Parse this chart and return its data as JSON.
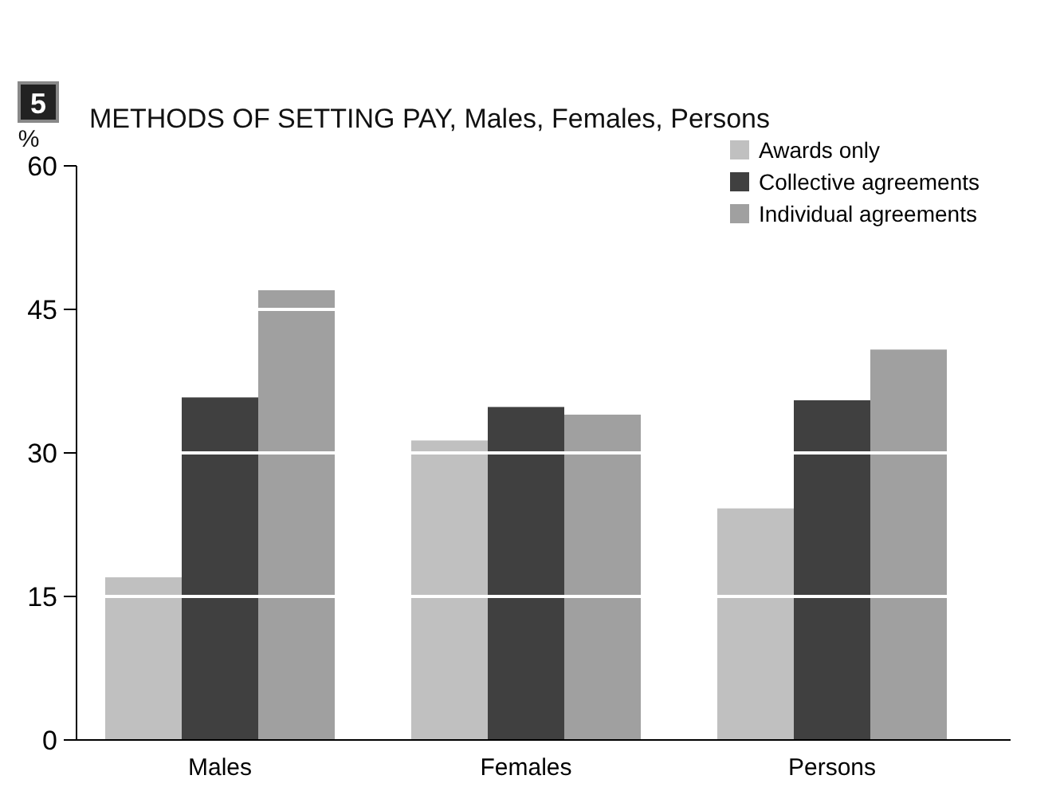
{
  "chart_data": {
    "type": "bar",
    "title": "METHODS OF SETTING PAY, Males, Females, Persons",
    "ylabel": "%",
    "annotations": [
      "5"
    ],
    "categories": [
      "Males",
      "Females",
      "Persons"
    ],
    "series": [
      {
        "name": "Awards only",
        "color": "#c0c0c0",
        "values": [
          17,
          31.3,
          24.2
        ]
      },
      {
        "name": "Collective agreements",
        "color": "#404040",
        "values": [
          35.8,
          34.8,
          35.5
        ]
      },
      {
        "name": "Individual agreements",
        "color": "#a0a0a0",
        "values": [
          47,
          34,
          40.8
        ]
      }
    ],
    "ylim": [
      0,
      60
    ],
    "yticks": [
      0,
      15,
      30,
      45,
      60
    ],
    "grid": "y",
    "legend": "top right"
  }
}
